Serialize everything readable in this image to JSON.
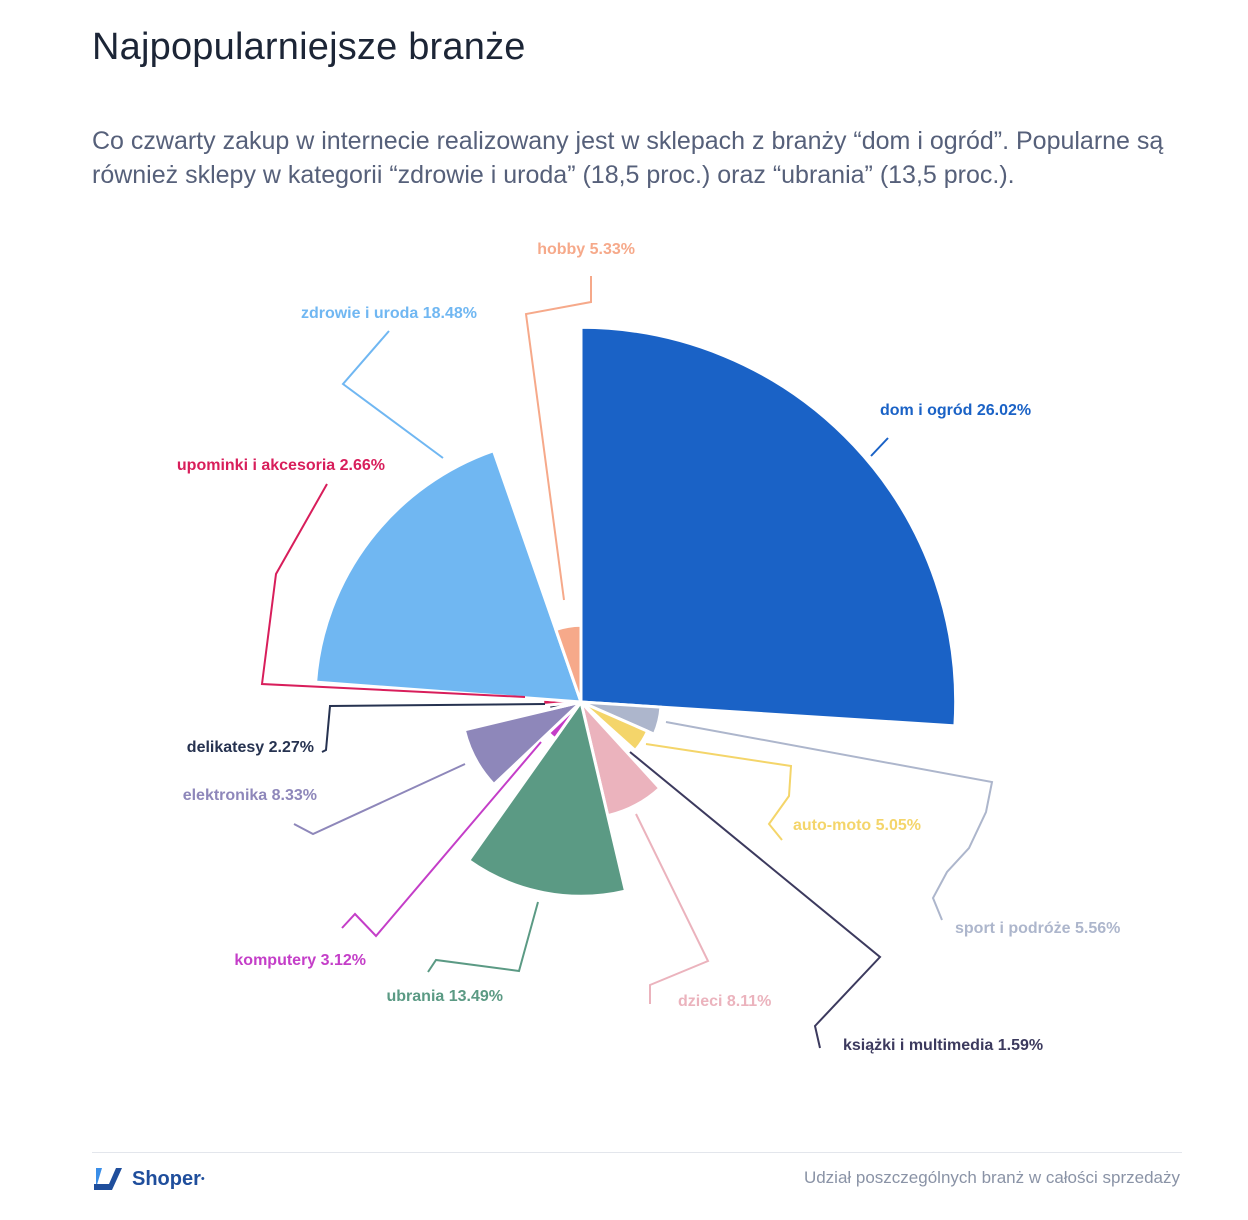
{
  "header": {
    "title": "Najpopularniejsze branże",
    "subtitle": "Co czwarty zakup w internecie realizowany jest w sklepach z branży “dom i ogród”. Popularne są również sklepy w kategorii “zdrowie i uroda” (18,5 proc.) oraz “ubrania” (13,5 proc.)."
  },
  "chart_data": {
    "type": "pie",
    "variant": "variable-radius (rose) pie, slice radius proportional to share",
    "slices": [
      {
        "name": "dom i ogród",
        "value": 26.02,
        "label": "dom i ogród 26.02%",
        "color": "#1a62c6"
      },
      {
        "name": "sport i podróże",
        "value": 5.56,
        "label": "sport i podróże 5.56%",
        "color": "#adb6cc"
      },
      {
        "name": "auto-moto",
        "value": 5.05,
        "label": "auto-moto 5.05%",
        "color": "#f4d56a"
      },
      {
        "name": "książki i multimedia",
        "value": 1.59,
        "label": "książki i multimedia 1.59%",
        "color": "#3c3a5e"
      },
      {
        "name": "dzieci",
        "value": 8.11,
        "label": "dzieci 8.11%",
        "color": "#ebb3bd"
      },
      {
        "name": "ubrania",
        "value": 13.49,
        "label": "ubrania 13.49%",
        "color": "#5b9a84"
      },
      {
        "name": "komputery",
        "value": 3.12,
        "label": "komputery 3.12%",
        "color": "#c43ec8"
      },
      {
        "name": "elektronika",
        "value": 8.33,
        "label": "elektronika 8.33%",
        "color": "#8e87ba"
      },
      {
        "name": "delikatesy",
        "value": 2.27,
        "label": "delikatesy 2.27%",
        "color": "#263250"
      },
      {
        "name": "upominki i akcesoria",
        "value": 2.66,
        "label": "upominki i akcesoria 2.66%",
        "color": "#d81e5b"
      },
      {
        "name": "zdrowie i uroda",
        "value": 18.48,
        "label": "zdrowie i uroda 18.48%",
        "color": "#70b7f2"
      },
      {
        "name": "hobby",
        "value": 5.33,
        "label": "hobby 5.33%",
        "color": "#f6a98a"
      }
    ]
  },
  "footer": {
    "logo_text": "Shoper",
    "logo_mark": "•",
    "logo_icon": "shoper-logo-icon",
    "caption": "Udział poszczególnych branż w całości sprzedaży"
  }
}
